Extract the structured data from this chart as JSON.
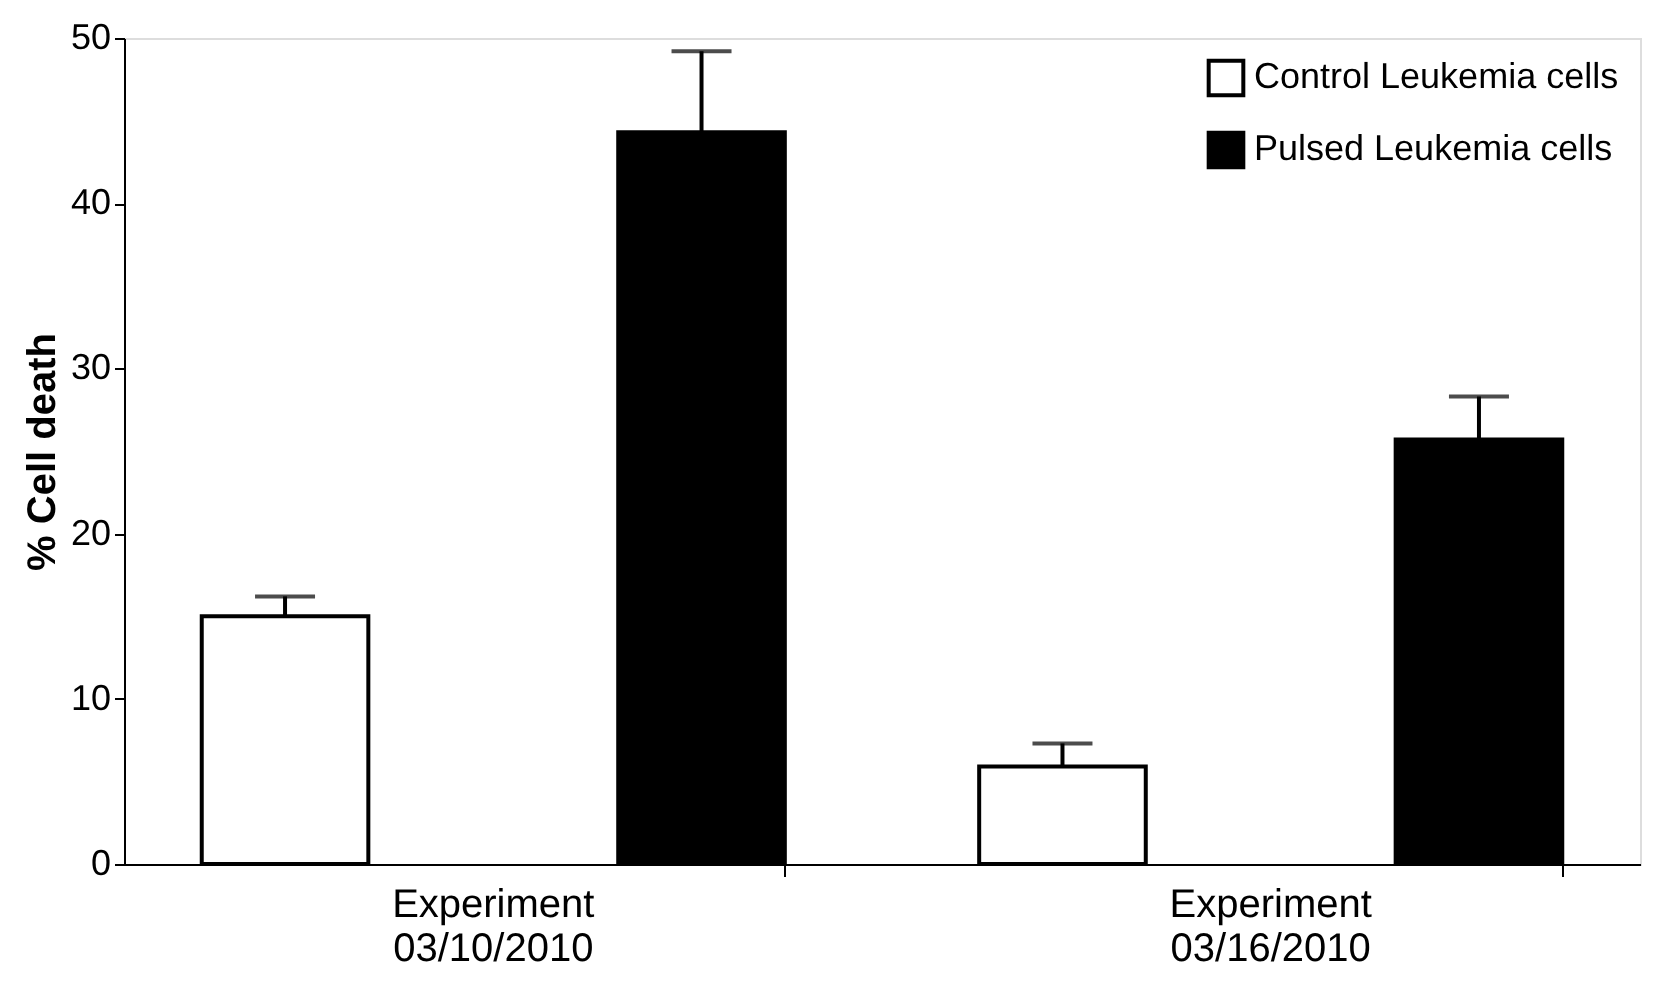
{
  "chart_data": {
    "type": "bar",
    "ylabel": "% Cell death",
    "categories": [
      "Experiment\n03/10/2010",
      "Experiment\n03/16/2010"
    ],
    "series": [
      {
        "name": "Control Leukemia cells",
        "color": "#ffffff",
        "values": [
          15.0,
          5.9
        ],
        "errors": [
          [
            15.0,
            16.2
          ],
          [
            5.9,
            7.3
          ]
        ]
      },
      {
        "name": "Pulsed Leukemia cells",
        "color": "#000000",
        "values": [
          44.3,
          25.7
        ],
        "errors": [
          [
            44.3,
            49.2
          ],
          [
            25.7,
            28.3
          ]
        ]
      }
    ],
    "ylim": [
      0,
      50
    ],
    "yticks": [
      0,
      10,
      20,
      30,
      40,
      50
    ],
    "grid": false,
    "legend": "top right"
  }
}
